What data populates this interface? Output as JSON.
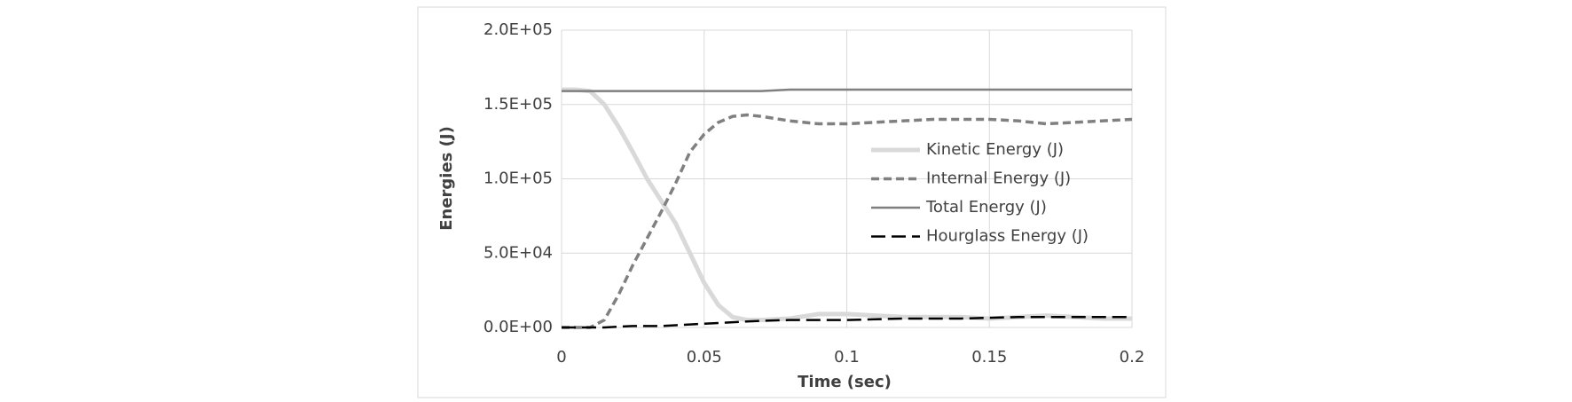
{
  "chart_data": {
    "type": "line",
    "x_label": "Time (sec)",
    "y_label": "Energies (J)",
    "x": [
      0,
      0.005,
      0.01,
      0.015,
      0.02,
      0.025,
      0.03,
      0.035,
      0.04,
      0.045,
      0.05,
      0.055,
      0.06,
      0.065,
      0.07,
      0.08,
      0.09,
      0.1,
      0.11,
      0.12,
      0.13,
      0.14,
      0.15,
      0.16,
      0.17,
      0.18,
      0.19,
      0.2
    ],
    "series": [
      {
        "name": "Kinetic Energy (J)",
        "color": "#d9d9d9",
        "values": [
          160000,
          160000,
          159000,
          150000,
          135000,
          118000,
          100000,
          85000,
          70000,
          50000,
          30000,
          15000,
          7000,
          5000,
          5000,
          6000,
          9000,
          9000,
          8000,
          7000,
          7000,
          7000,
          6000,
          7000,
          8000,
          7000,
          6000,
          6000
        ]
      },
      {
        "name": "Internal Energy (J)",
        "color": "#808080",
        "values": [
          0,
          0,
          0,
          5000,
          22000,
          42000,
          60000,
          78000,
          97000,
          118000,
          130000,
          138000,
          142000,
          143000,
          142000,
          139000,
          137000,
          137000,
          138000,
          139000,
          140000,
          140000,
          140000,
          139000,
          137000,
          138000,
          139000,
          140000
        ]
      },
      {
        "name": "Total Energy (J)",
        "color": "#7f7f7f",
        "values": [
          159000,
          159000,
          159000,
          159000,
          159000,
          159000,
          159000,
          159000,
          159000,
          159000,
          159000,
          159000,
          159000,
          159000,
          159000,
          160000,
          160000,
          160000,
          160000,
          160000,
          160000,
          160000,
          160000,
          160000,
          160000,
          160000,
          160000,
          160000
        ]
      },
      {
        "name": "Hourglass Energy (J)",
        "color": "#000000",
        "values": [
          0,
          0,
          0,
          0,
          500,
          1000,
          1000,
          1000,
          1500,
          2000,
          2500,
          3000,
          3500,
          4000,
          4500,
          5000,
          5000,
          5000,
          5500,
          6000,
          6000,
          6000,
          6500,
          7000,
          7000,
          7000,
          7000,
          7000
        ]
      }
    ],
    "xlim": [
      0,
      0.2
    ],
    "xticks": [
      0,
      0.05,
      0.1,
      0.15,
      0.2
    ],
    "ylim": [
      0,
      200000
    ],
    "yticks": [
      {
        "value": 0,
        "label": "0.0E+00"
      },
      {
        "value": 50000,
        "label": "5.0E+04"
      },
      {
        "value": 100000,
        "label": "1.0E+05"
      },
      {
        "value": 150000,
        "label": "1.5E+05"
      },
      {
        "value": 200000,
        "label": "2.0E+05"
      }
    ],
    "grid": true
  }
}
